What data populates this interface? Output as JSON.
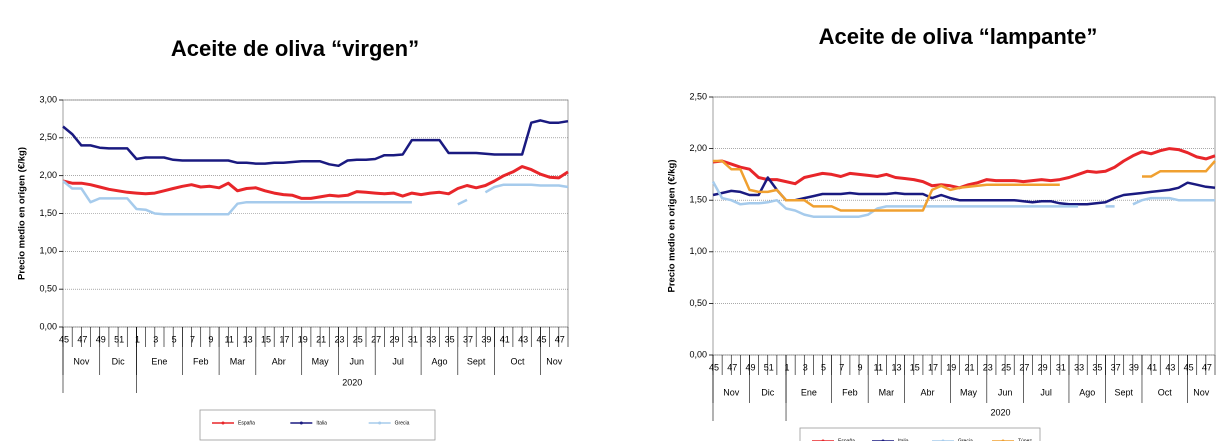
{
  "chart_data": [
    {
      "type": "line",
      "title": "Aceite de oliva “virgen”",
      "y_label": "Precio medio en origen (€/kg)",
      "categories": [
        "45",
        null,
        "47",
        null,
        "49",
        null,
        "51",
        null,
        "1",
        null,
        "3",
        null,
        "5",
        null,
        "7",
        null,
        "9",
        null,
        "11",
        null,
        "13",
        null,
        "15",
        null,
        "17",
        null,
        "19",
        null,
        "21",
        null,
        "23",
        null,
        "25",
        null,
        "27",
        null,
        "29",
        null,
        "31",
        null,
        "33",
        null,
        "35",
        null,
        "37",
        null,
        "39",
        null,
        "41",
        null,
        "43",
        null,
        "45",
        null,
        "47",
        null
      ],
      "month_labels": [
        "Nov",
        "Dic",
        "Ene",
        "Feb",
        "Mar",
        "Abr",
        "May",
        "Jun",
        "Jul",
        "Ago",
        "Sept",
        "Oct",
        "Nov"
      ],
      "year_label": "2020",
      "ylim": [
        0,
        3
      ],
      "yticks": [
        {
          "value": 0,
          "label": "0,00"
        },
        {
          "value": 0.5,
          "label": "0,50"
        },
        {
          "value": 1,
          "label": "1,00"
        },
        {
          "value": 1.5,
          "label": "1,50"
        },
        {
          "value": 2,
          "label": "2,00"
        },
        {
          "value": 2.5,
          "label": "2,50"
        },
        {
          "value": 3,
          "label": "3,00"
        }
      ],
      "grid": true,
      "series": [
        {
          "name": "España",
          "color": "#e8262a",
          "values": [
            1.93,
            1.9,
            1.9,
            1.88,
            1.85,
            1.82,
            1.8,
            1.78,
            1.77,
            1.76,
            1.77,
            1.8,
            1.83,
            1.86,
            1.88,
            1.85,
            1.86,
            1.84,
            1.9,
            1.8,
            1.83,
            1.84,
            1.8,
            1.77,
            1.75,
            1.74,
            1.7,
            1.7,
            1.72,
            1.74,
            1.73,
            1.74,
            1.79,
            1.78,
            1.77,
            1.76,
            1.77,
            1.73,
            1.77,
            1.75,
            1.77,
            1.78,
            1.76,
            1.83,
            1.87,
            1.84,
            1.87,
            1.93,
            2.0,
            2.05,
            2.12,
            2.08,
            2.02,
            1.98,
            1.97,
            2.05
          ]
        },
        {
          "name": "Italia",
          "color": "#1a1a80",
          "values": [
            2.65,
            2.55,
            2.4,
            2.4,
            2.37,
            2.36,
            2.36,
            2.36,
            2.22,
            2.24,
            2.24,
            2.24,
            2.21,
            2.2,
            2.2,
            2.2,
            2.2,
            2.2,
            2.2,
            2.17,
            2.17,
            2.16,
            2.16,
            2.17,
            2.17,
            2.18,
            2.19,
            2.19,
            2.19,
            2.15,
            2.13,
            2.2,
            2.21,
            2.21,
            2.22,
            2.27,
            2.27,
            2.28,
            2.47,
            2.47,
            2.47,
            2.47,
            2.3,
            2.3,
            2.3,
            2.3,
            2.29,
            2.28,
            2.28,
            2.28,
            2.28,
            2.7,
            2.73,
            2.7,
            2.7,
            2.72
          ]
        },
        {
          "name": "Grecia",
          "color": "#a6cbec",
          "values": [
            1.93,
            1.83,
            1.83,
            1.65,
            1.7,
            1.7,
            1.7,
            1.7,
            1.56,
            1.55,
            1.5,
            1.49,
            1.49,
            1.49,
            1.49,
            1.49,
            1.49,
            1.49,
            1.49,
            1.63,
            1.65,
            1.65,
            1.65,
            1.65,
            1.65,
            1.65,
            1.65,
            1.65,
            1.65,
            1.65,
            1.65,
            1.65,
            1.65,
            1.65,
            1.65,
            1.65,
            1.65,
            1.65,
            1.65,
            null,
            null,
            null,
            null,
            1.62,
            1.68,
            null,
            1.78,
            1.85,
            1.88,
            1.88,
            1.88,
            1.88,
            1.87,
            1.87,
            1.87,
            1.85
          ]
        }
      ]
    },
    {
      "type": "line",
      "title": "Aceite de oliva “lampante”",
      "y_label": "Precio medio en origen (€/kg)",
      "categories": [
        "45",
        null,
        "47",
        null,
        "49",
        null,
        "51",
        null,
        "1",
        null,
        "3",
        null,
        "5",
        null,
        "7",
        null,
        "9",
        null,
        "11",
        null,
        "13",
        null,
        "15",
        null,
        "17",
        null,
        "19",
        null,
        "21",
        null,
        "23",
        null,
        "25",
        null,
        "27",
        null,
        "29",
        null,
        "31",
        null,
        "33",
        null,
        "35",
        null,
        "37",
        null,
        "39",
        null,
        "41",
        null,
        "43",
        null,
        "45",
        null,
        "47",
        null
      ],
      "month_labels": [
        "Nov",
        "Dic",
        "Ene",
        "Feb",
        "Mar",
        "Abr",
        "May",
        "Jun",
        "Jul",
        "Ago",
        "Sept",
        "Oct",
        "Nov"
      ],
      "year_label": "2020",
      "ylim": [
        0,
        2.5
      ],
      "yticks": [
        {
          "value": 0,
          "label": "0,00"
        },
        {
          "value": 0.5,
          "label": "0,50"
        },
        {
          "value": 1,
          "label": "1,00"
        },
        {
          "value": 1.5,
          "label": "1,50"
        },
        {
          "value": 2,
          "label": "2,00"
        },
        {
          "value": 2.5,
          "label": "2,50"
        }
      ],
      "grid": true,
      "series": [
        {
          "name": "España",
          "color": "#e8262a",
          "values": [
            1.87,
            1.88,
            1.85,
            1.82,
            1.8,
            1.72,
            1.7,
            1.7,
            1.68,
            1.66,
            1.72,
            1.74,
            1.76,
            1.75,
            1.73,
            1.76,
            1.75,
            1.74,
            1.73,
            1.75,
            1.72,
            1.71,
            1.7,
            1.68,
            1.64,
            1.65,
            1.64,
            1.62,
            1.65,
            1.67,
            1.7,
            1.69,
            1.69,
            1.69,
            1.68,
            1.69,
            1.7,
            1.69,
            1.7,
            1.72,
            1.75,
            1.78,
            1.77,
            1.78,
            1.82,
            1.88,
            1.93,
            1.97,
            1.95,
            1.98,
            2.0,
            1.99,
            1.96,
            1.92,
            1.9,
            1.93
          ]
        },
        {
          "name": "Italia",
          "color": "#1a1a80",
          "values": [
            1.55,
            1.57,
            1.59,
            1.58,
            1.55,
            1.55,
            1.72,
            1.6,
            1.5,
            1.5,
            1.52,
            1.54,
            1.56,
            1.56,
            1.56,
            1.57,
            1.56,
            1.56,
            1.56,
            1.56,
            1.57,
            1.56,
            1.56,
            1.56,
            1.52,
            1.55,
            1.52,
            1.5,
            1.5,
            1.5,
            1.5,
            1.5,
            1.5,
            1.5,
            1.49,
            1.48,
            1.49,
            1.49,
            1.47,
            1.46,
            1.46,
            1.46,
            1.47,
            1.48,
            1.52,
            1.55,
            1.56,
            1.57,
            1.58,
            1.59,
            1.6,
            1.62,
            1.67,
            1.65,
            1.63,
            1.62
          ]
        },
        {
          "name": "Grecia",
          "color": "#a6cbec",
          "values": [
            1.68,
            1.52,
            1.5,
            1.46,
            1.47,
            1.47,
            1.48,
            1.5,
            1.42,
            1.4,
            1.36,
            1.34,
            1.34,
            1.34,
            1.34,
            1.34,
            1.34,
            1.36,
            1.42,
            1.44,
            1.44,
            1.44,
            1.44,
            1.44,
            1.44,
            1.44,
            1.44,
            1.44,
            1.44,
            1.44,
            1.44,
            1.44,
            1.44,
            1.44,
            1.44,
            1.44,
            1.44,
            1.44,
            1.44,
            1.44,
            1.44,
            null,
            null,
            1.44,
            1.44,
            null,
            1.46,
            1.5,
            1.52,
            1.52,
            1.52,
            1.5,
            1.5,
            1.5,
            1.5,
            1.5
          ]
        },
        {
          "name": "Túnez",
          "color": "#f0a030",
          "values": [
            1.88,
            1.88,
            1.8,
            1.8,
            1.6,
            1.58,
            1.58,
            1.6,
            1.5,
            1.5,
            1.5,
            1.44,
            1.44,
            1.44,
            1.4,
            1.4,
            1.4,
            1.4,
            1.4,
            1.4,
            1.4,
            1.4,
            1.4,
            1.4,
            1.6,
            1.64,
            1.6,
            1.62,
            1.63,
            1.64,
            1.65,
            1.65,
            1.65,
            1.65,
            1.65,
            1.65,
            1.65,
            1.65,
            1.65,
            null,
            null,
            null,
            null,
            null,
            null,
            null,
            null,
            1.73,
            1.73,
            1.78,
            1.78,
            1.78,
            1.78,
            1.78,
            1.78,
            1.88
          ]
        }
      ]
    }
  ]
}
